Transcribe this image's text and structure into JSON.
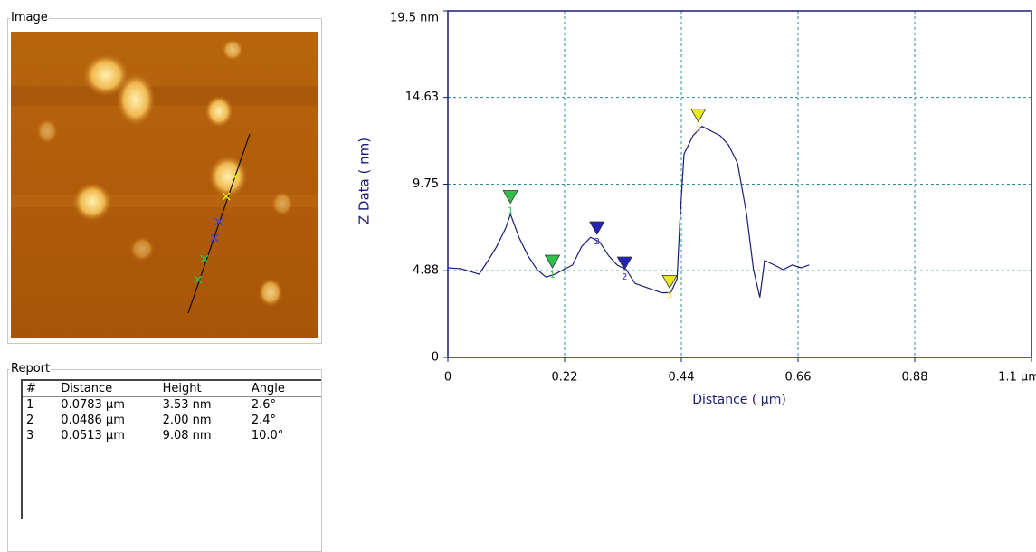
{
  "image_panel": {
    "title": "Image"
  },
  "report": {
    "title": "Report",
    "columns": [
      "#",
      "Distance",
      "Height",
      "Angle"
    ],
    "rows": [
      [
        "1",
        "0.0783 µm",
        "3.53 nm",
        "2.6°"
      ],
      [
        "2",
        "0.0486 µm",
        "2.00 nm",
        "2.4°"
      ],
      [
        "3",
        "0.0513 µm",
        "9.08 nm",
        "10.0°"
      ]
    ]
  },
  "chart_data": {
    "type": "line",
    "x_label": "Distance ( µm)",
    "y_label": "Z Data ( nm)",
    "x": [
      0,
      0.025,
      0.059,
      0.076,
      0.092,
      0.109,
      0.118,
      0.134,
      0.151,
      0.168,
      0.185,
      0.202,
      0.218,
      0.235,
      0.252,
      0.269,
      0.286,
      0.303,
      0.319,
      0.336,
      0.353,
      0.378,
      0.403,
      0.42,
      0.432,
      0.437,
      0.445,
      0.462,
      0.479,
      0.496,
      0.513,
      0.529,
      0.546,
      0.563,
      0.576,
      0.588,
      0.597,
      0.615,
      0.632,
      0.649,
      0.666,
      0.681
    ],
    "series": [
      {
        "color": "#1c1c78",
        "values": [
          5.04,
          4.99,
          4.68,
          5.46,
          6.24,
          7.28,
          8.06,
          6.76,
          5.72,
          4.94,
          4.52,
          4.68,
          4.94,
          5.2,
          6.24,
          6.76,
          6.5,
          5.72,
          5.2,
          4.94,
          4.16,
          3.9,
          3.64,
          3.64,
          4.42,
          7.54,
          11.44,
          12.48,
          13.0,
          12.74,
          12.48,
          11.96,
          10.92,
          8.06,
          4.94,
          3.38,
          5.46,
          5.2,
          4.94,
          5.2,
          5.04,
          5.2
        ]
      }
    ],
    "cursors": [
      {
        "label": "1",
        "color": "#2ec24a",
        "x": [
          0.118,
          0.197
        ],
        "y": [
          8.68,
          5.04
        ]
      },
      {
        "label": "2",
        "color": "#2424b8",
        "x": [
          0.281,
          0.333
        ],
        "y": [
          6.92,
          4.94
        ]
      },
      {
        "label": "3",
        "color": "#e8e81a",
        "x": [
          0.418,
          0.472
        ],
        "y": [
          3.9,
          13.26
        ]
      }
    ],
    "xlim": [
      0,
      1.1
    ],
    "ylim": [
      0,
      19.5
    ],
    "xticks": [
      0,
      0.22,
      0.44,
      0.66,
      0.88,
      {
        "value": 1.1,
        "label": "1.1 µm"
      }
    ],
    "yticks": [
      0,
      4.88,
      9.75,
      14.63,
      {
        "value": 19.5,
        "label": "19.5 nm"
      }
    ],
    "grid": true,
    "grid_color": "#2a8a9a",
    "axis_color": "#1c1c78"
  }
}
